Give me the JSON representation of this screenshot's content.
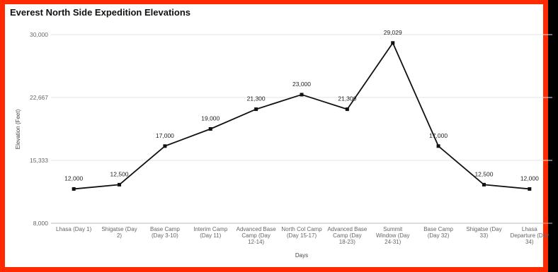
{
  "chart_data": {
    "type": "line",
    "title": "Everest North Side Expedition Elevations",
    "xlabel": "Days",
    "ylabel": "Elevation (Feet)",
    "ylim": [
      8000,
      30000
    ],
    "yticks": [
      "8,000",
      "15,333",
      "22,667",
      "30,000"
    ],
    "grid": true,
    "legend": "none",
    "color": "#111111",
    "categories": [
      [
        "Lhasa (Day 1)"
      ],
      [
        "Shigatse (Day",
        "2)"
      ],
      [
        "Base Camp",
        "(Day 3-10)"
      ],
      [
        "Interim Camp",
        "(Day 11)"
      ],
      [
        "Advanced Base",
        "Camp (Day",
        "12-14)"
      ],
      [
        "North Col Camp",
        "(Day 15-17)"
      ],
      [
        "Advanced Base",
        "Camp (Day",
        "18-23)"
      ],
      [
        "Summit",
        "Window (Day",
        "24-31)"
      ],
      [
        "Base Camp",
        "(Day 32)"
      ],
      [
        "Shigatse (Day",
        "33)"
      ],
      [
        "Lhasa",
        "Departure (Day",
        "34)"
      ]
    ],
    "values": [
      12000,
      12500,
      17000,
      19000,
      21300,
      23000,
      21300,
      29029,
      17000,
      12500,
      12000
    ],
    "data_labels": [
      "12,000",
      "12,500",
      "17,000",
      "19,000",
      "21,300",
      "23,000",
      "21,300",
      "29,029",
      "17,000",
      "12,500",
      "12,000"
    ]
  }
}
